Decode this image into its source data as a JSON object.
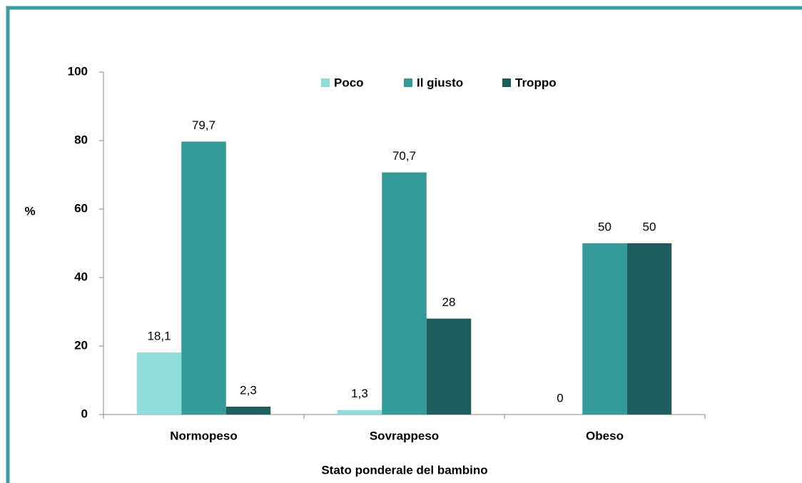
{
  "chart_data": {
    "type": "bar",
    "categories": [
      "Normopeso",
      "Sovrappeso",
      "Obeso"
    ],
    "series": [
      {
        "name": "Poco",
        "color": "#8fdcd9",
        "values": [
          18.1,
          1.3,
          0
        ],
        "value_labels": [
          "18,1",
          "1,3",
          "0"
        ]
      },
      {
        "name": "Il giusto",
        "color": "#339a98",
        "values": [
          79.7,
          70.7,
          50
        ],
        "value_labels": [
          "79,7",
          "70,7",
          "50"
        ]
      },
      {
        "name": "Troppo",
        "color": "#1e5d5d",
        "values": [
          2.3,
          28,
          50
        ],
        "value_labels": [
          "2,3",
          "28",
          "50"
        ]
      }
    ],
    "ylabel": "%",
    "xlabel": "Stato ponderale del bambino",
    "ylim": [
      0,
      100
    ],
    "yticks": [
      0,
      20,
      40,
      60,
      80,
      100
    ],
    "legend": "top"
  }
}
